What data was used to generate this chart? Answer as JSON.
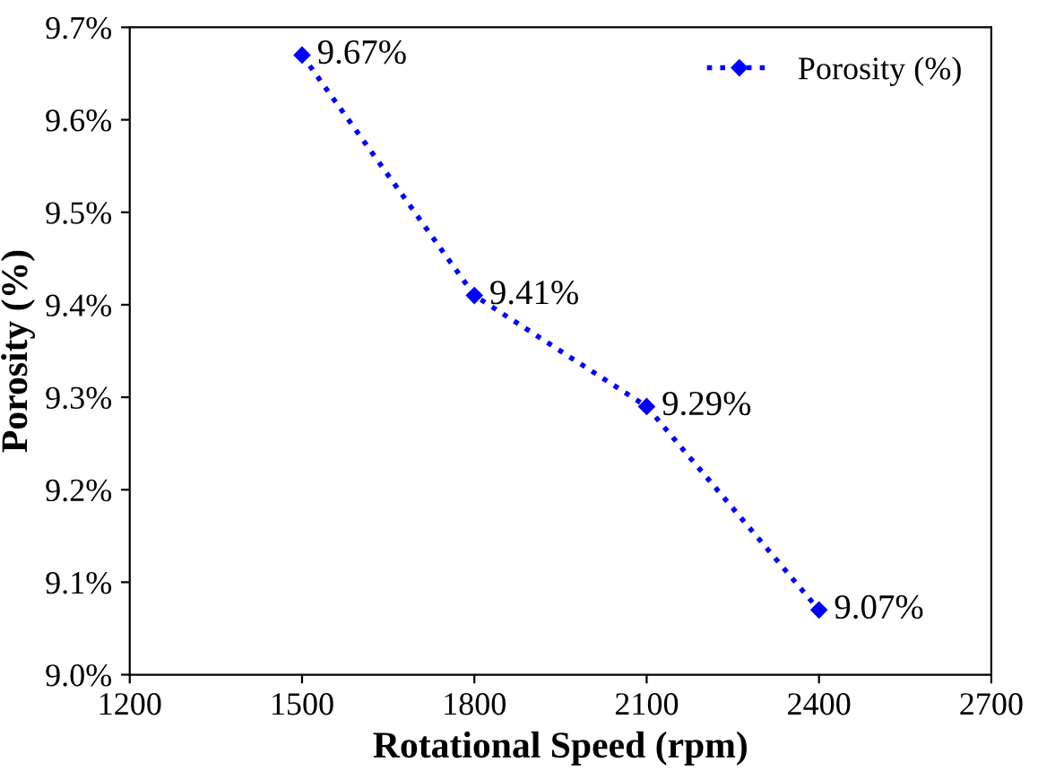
{
  "chart_data": {
    "type": "line",
    "xlabel": "Rotational Speed (rpm)",
    "ylabel": "Porosity (%)",
    "x": [
      1500,
      1800,
      2100,
      2400
    ],
    "series": [
      {
        "name": "Porosity (%)",
        "color": "#0000ff",
        "values": [
          9.67,
          9.41,
          9.29,
          9.07
        ],
        "value_labels": [
          "9.67%",
          "9.41%",
          "9.29%",
          "9.07%"
        ]
      }
    ],
    "xlim": [
      1200,
      2700
    ],
    "xticks": [
      1200,
      1500,
      1800,
      2100,
      2400,
      2700
    ],
    "ylim": [
      9.0,
      9.7
    ],
    "yticks": [
      {
        "value": 9.0,
        "label": "9.0%"
      },
      {
        "value": 9.1,
        "label": "9.1%"
      },
      {
        "value": 9.2,
        "label": "9.2%"
      },
      {
        "value": 9.3,
        "label": "9.3%"
      },
      {
        "value": 9.4,
        "label": "9.4%"
      },
      {
        "value": 9.5,
        "label": "9.5%"
      },
      {
        "value": 9.6,
        "label": "9.6%"
      },
      {
        "value": 9.7,
        "label": "9.7%"
      }
    ],
    "marker": "diamond",
    "line_style": "dotted",
    "legend": "top right",
    "grid": false
  }
}
